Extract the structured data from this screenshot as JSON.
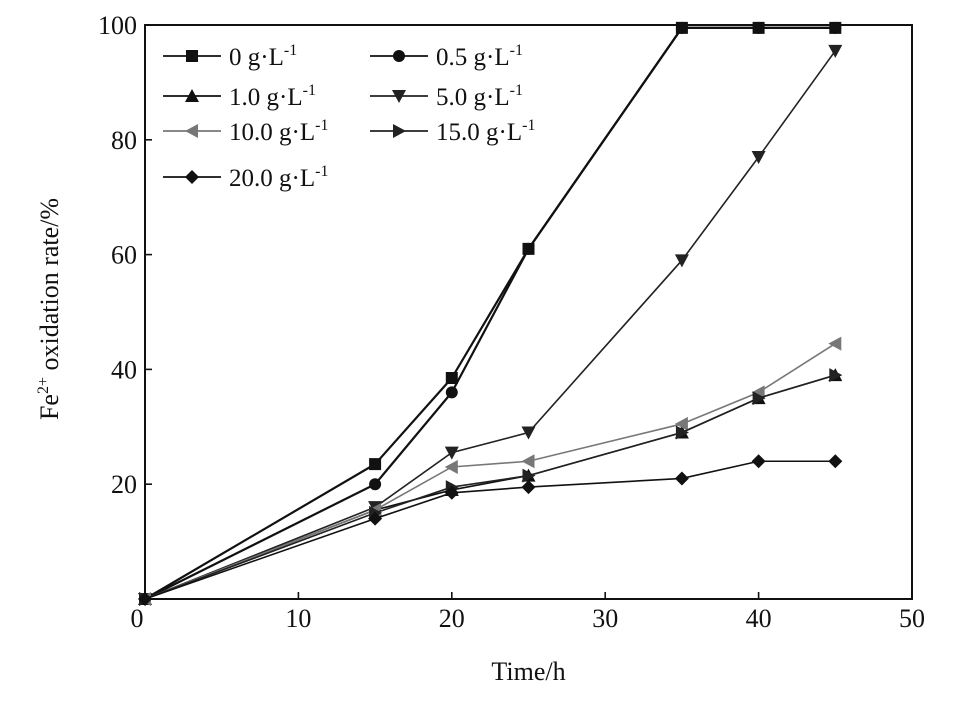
{
  "chart_data": {
    "type": "line",
    "xlabel": "Time/h",
    "ylabel": {
      "base": "Fe",
      "sup": "2+",
      "rest": " oxidation rate/%"
    },
    "xlim": [
      0,
      50
    ],
    "ylim": [
      0,
      100
    ],
    "xticks": [
      "0",
      "10",
      "20",
      "30",
      "40",
      "50"
    ],
    "yticks": [
      "0",
      "20",
      "40",
      "60",
      "80",
      "100"
    ],
    "grid": false,
    "legend_position": "top-left",
    "series": [
      {
        "name": "0 g·L",
        "sup": "-1",
        "marker": "square",
        "color": "#111111",
        "x": [
          0,
          15,
          20,
          25,
          35,
          40,
          45
        ],
        "y": [
          0,
          23.5,
          38.5,
          61,
          99.5,
          99.5,
          99.5
        ]
      },
      {
        "name": "0.5 g·L",
        "sup": "-1",
        "marker": "circle",
        "color": "#111111",
        "x": [
          0,
          15,
          20,
          25,
          35,
          40,
          45
        ],
        "y": [
          0,
          20,
          36,
          61,
          99.5,
          99.5,
          99.5
        ]
      },
      {
        "name": "1.0 g·L",
        "sup": "-1",
        "marker": "triangle-up",
        "color": "#111111",
        "x": [
          0,
          15,
          20,
          25,
          35,
          40,
          45
        ],
        "y": [
          0,
          15.5,
          19,
          21.5,
          29,
          35,
          39
        ]
      },
      {
        "name": "5.0 g·L",
        "sup": "-1",
        "marker": "triangle-down",
        "color": "#222222",
        "x": [
          0,
          15,
          20,
          25,
          35,
          40,
          45
        ],
        "y": [
          0,
          16,
          25.5,
          29,
          59,
          77,
          95.5
        ]
      },
      {
        "name": "10.0 g·L",
        "sup": "-1",
        "marker": "triangle-left",
        "color": "#777777",
        "x": [
          0,
          15,
          20,
          25,
          35,
          40,
          45
        ],
        "y": [
          0,
          15.5,
          23,
          24,
          30.5,
          36,
          44.5
        ]
      },
      {
        "name": "15.0 g·L",
        "sup": "-1",
        "marker": "triangle-right",
        "color": "#222222",
        "x": [
          0,
          15,
          20,
          25,
          35,
          40,
          45
        ],
        "y": [
          0,
          15,
          19.5,
          21.5,
          29,
          35,
          39
        ]
      },
      {
        "name": "20.0 g·L",
        "sup": "-1",
        "marker": "diamond",
        "color": "#111111",
        "x": [
          0,
          15,
          20,
          25,
          35,
          40,
          45
        ],
        "y": [
          0,
          14,
          18.5,
          19.5,
          21,
          24,
          24
        ]
      }
    ]
  }
}
